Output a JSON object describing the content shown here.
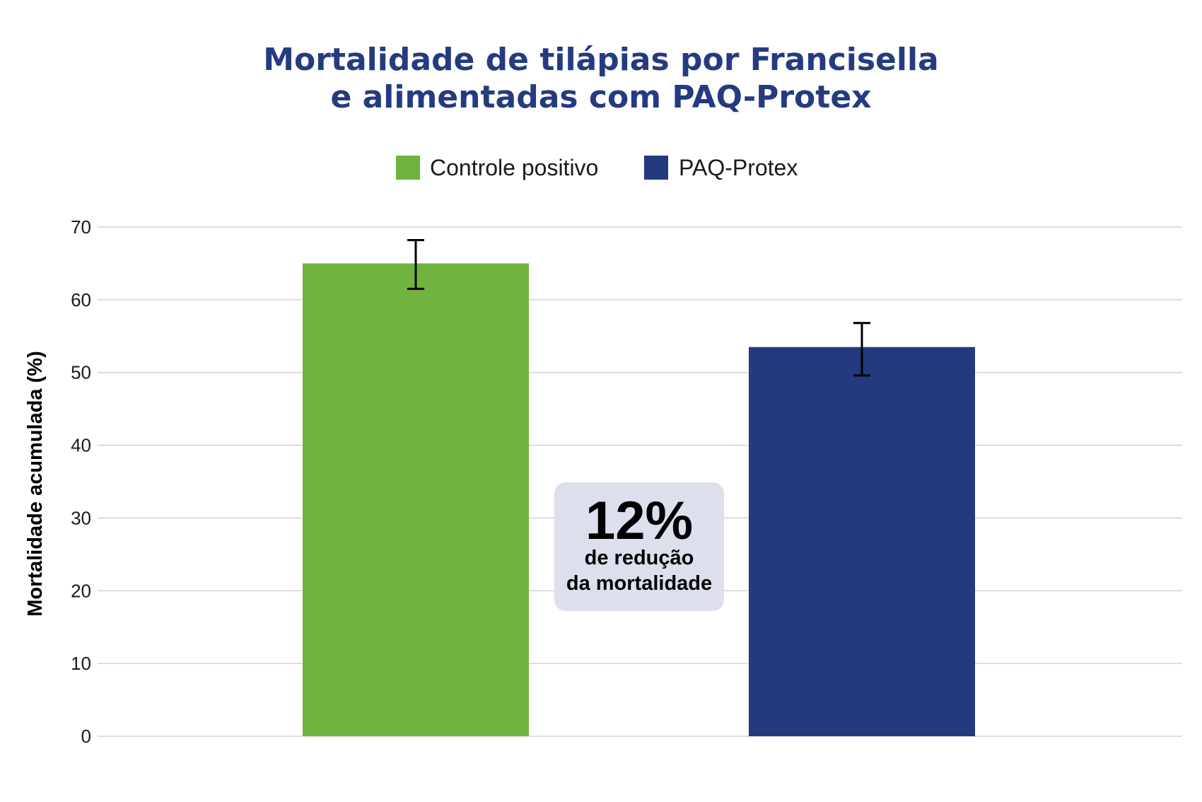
{
  "colors": {
    "title": "#253b80",
    "controle": "#70b33f",
    "paq": "#243a7f",
    "grid": "#d3d3d3",
    "callout_bg": "#dbe0ec",
    "error_bar": "#000000"
  },
  "chart_data": {
    "type": "bar",
    "title": [
      "Mortalidade de tilápias por Francisella",
      "e alimentadas com PAQ-Protex"
    ],
    "xlabel": "",
    "ylabel": "Mortalidade acumulada (%)",
    "ylim": [
      0,
      70
    ],
    "yticks": [
      0,
      10,
      20,
      30,
      40,
      50,
      60,
      70
    ],
    "grid": true,
    "legend_position": "top-center",
    "categories": [
      "Controle positivo",
      "PAQ-Protex"
    ],
    "series": [
      {
        "name": "Controle positivo",
        "value": 65,
        "error_low": 61.5,
        "error_high": 68.2,
        "color_key": "controle"
      },
      {
        "name": "PAQ-Protex",
        "value": 53.5,
        "error_low": 49.6,
        "error_high": 56.8,
        "color_key": "paq"
      }
    ],
    "annotation": {
      "headline": "12%",
      "line1": "de redução",
      "line2": "da mortalidade"
    }
  }
}
